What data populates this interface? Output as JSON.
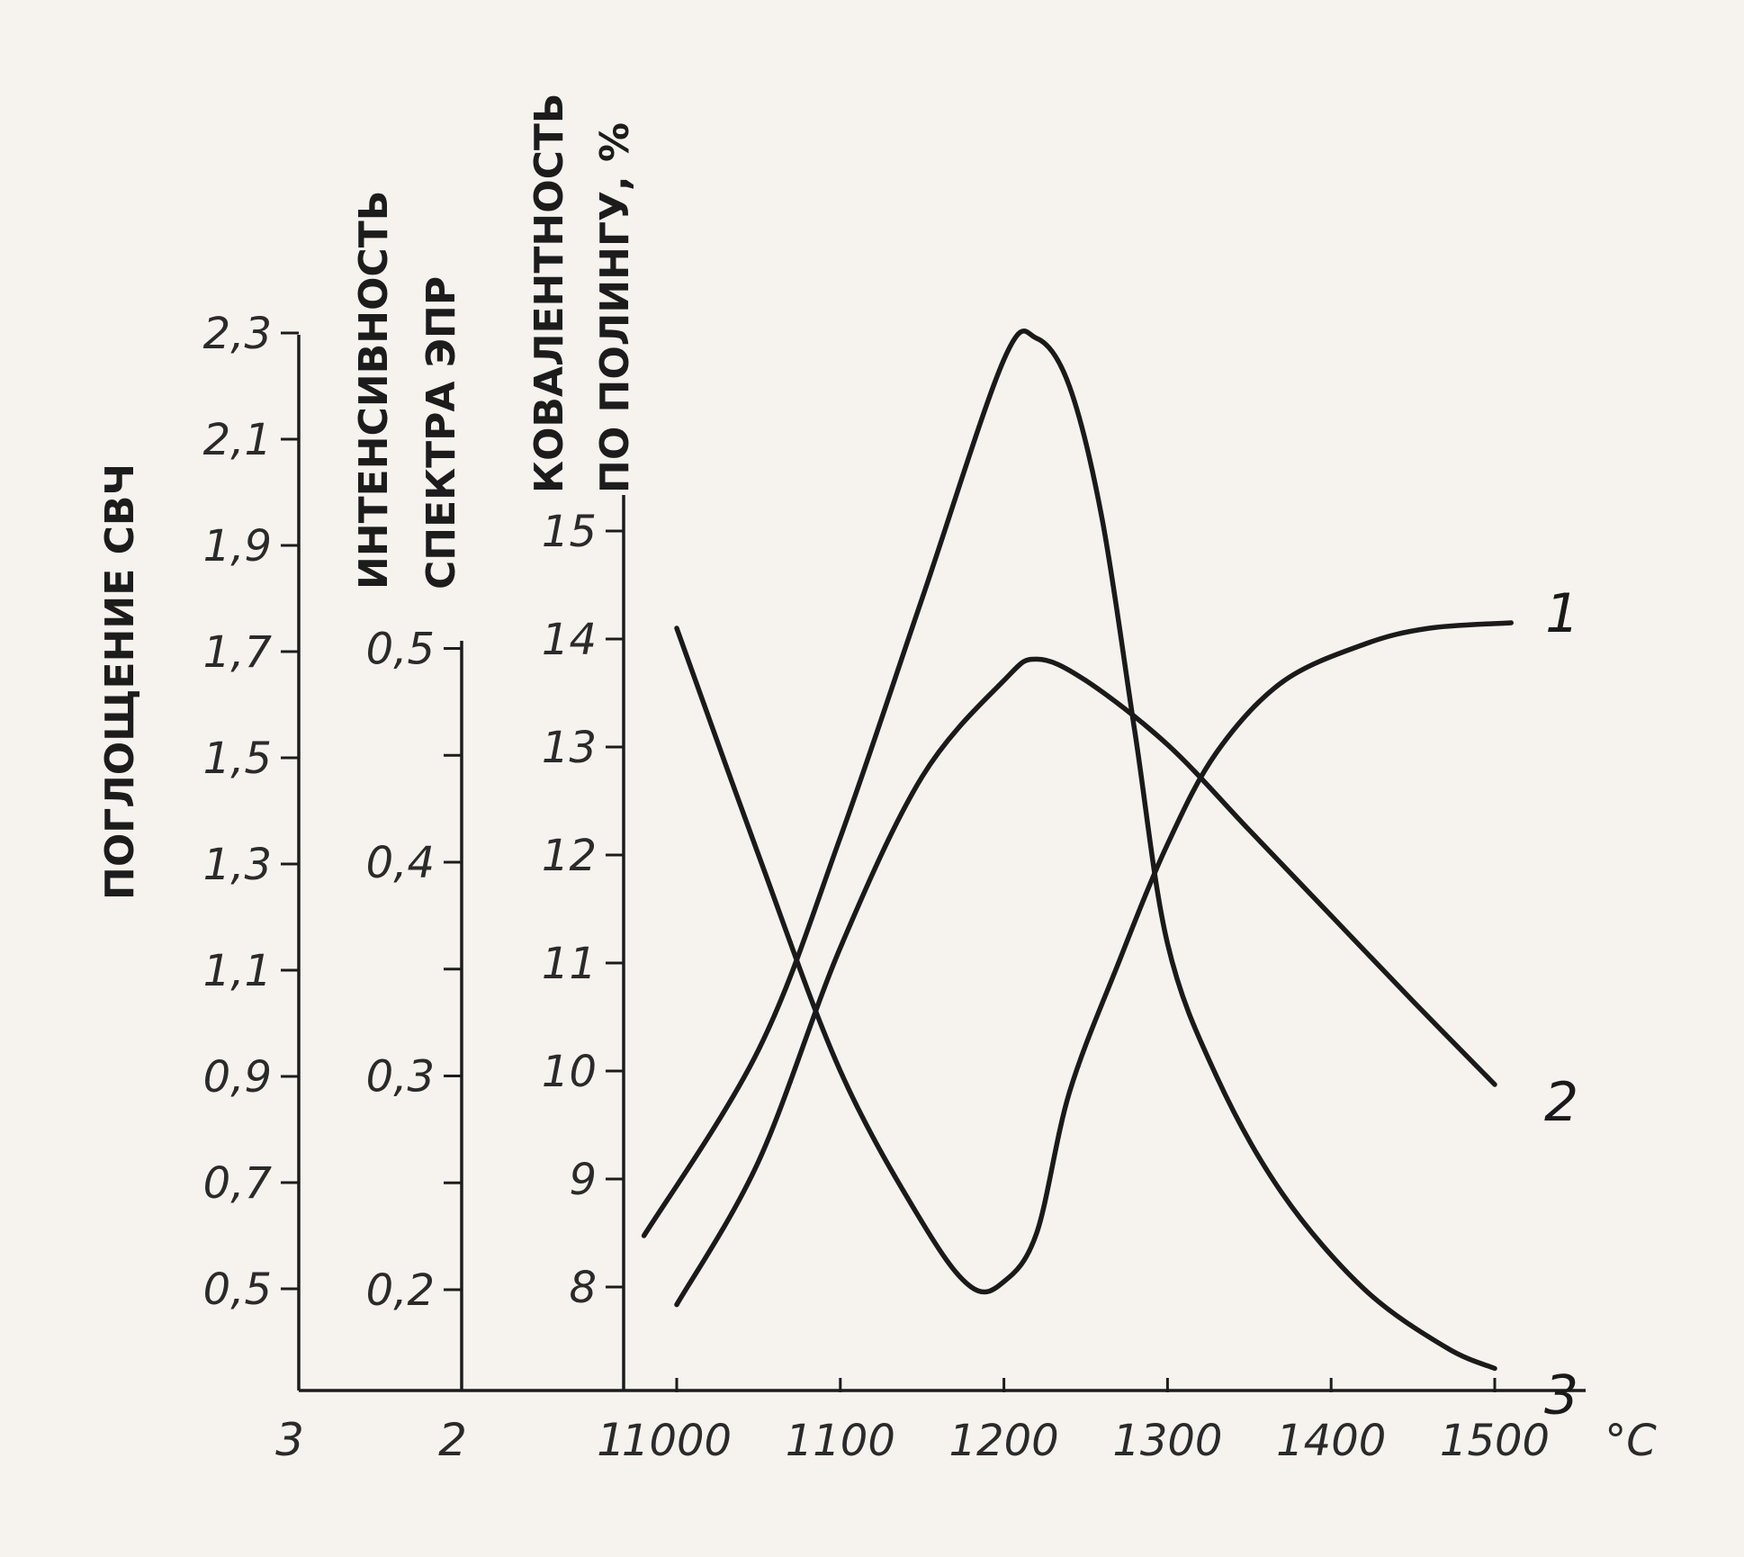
{
  "chart_data": {
    "type": "line",
    "x": {
      "label": "°C",
      "ticks": [
        1000,
        1100,
        1200,
        1300,
        1400,
        1500
      ],
      "range": [
        970,
        1550
      ]
    },
    "y_axes": [
      {
        "id": "3",
        "title": "ПОГЛОЩЕНИЕ СВЧ",
        "ticks": [
          "0,5",
          "0,7",
          "0,9",
          "1,1",
          "1,3",
          "1,5",
          "1,7",
          "1,9",
          "2,1",
          "2,3"
        ],
        "tick_values": [
          0.5,
          0.7,
          0.9,
          1.1,
          1.3,
          1.5,
          1.7,
          1.9,
          2.1,
          2.3
        ],
        "range": [
          0.3,
          2.3
        ]
      },
      {
        "id": "2",
        "title_lines": [
          "ИНТЕНСИВНОСТЬ",
          "СПЕКТРА ЭПР"
        ],
        "ticks": [
          "0,2",
          "0,3",
          "0,4",
          "0,5"
        ],
        "tick_values": [
          0.2,
          0.3,
          0.4,
          0.5
        ],
        "range": [
          0.15,
          0.5
        ]
      },
      {
        "id": "1",
        "title_lines": [
          "КОВАЛЕНТНОСТЬ",
          "ПО ПОЛИНГУ, %"
        ],
        "ticks": [
          "8",
          "9",
          "10",
          "11",
          "12",
          "13",
          "14",
          "15"
        ],
        "tick_values": [
          8,
          9,
          10,
          11,
          12,
          13,
          14,
          15
        ],
        "range": [
          7,
          15
        ]
      }
    ],
    "series": [
      {
        "name": "1",
        "axis": "1",
        "points": [
          [
            1000,
            14.1
          ],
          [
            1050,
            12.0
          ],
          [
            1100,
            10.0
          ],
          [
            1150,
            8.6
          ],
          [
            1180,
            8.0
          ],
          [
            1200,
            8.05
          ],
          [
            1220,
            8.5
          ],
          [
            1240,
            9.8
          ],
          [
            1270,
            11.0
          ],
          [
            1300,
            12.1
          ],
          [
            1330,
            12.95
          ],
          [
            1370,
            13.6
          ],
          [
            1420,
            13.95
          ],
          [
            1460,
            14.1
          ],
          [
            1510,
            14.15
          ]
        ]
      },
      {
        "name": "2",
        "axis": "2",
        "points": [
          [
            1000,
            0.193
          ],
          [
            1050,
            0.26
          ],
          [
            1100,
            0.36
          ],
          [
            1150,
            0.44
          ],
          [
            1200,
            0.485
          ],
          [
            1220,
            0.495
          ],
          [
            1250,
            0.485
          ],
          [
            1300,
            0.455
          ],
          [
            1350,
            0.415
          ],
          [
            1400,
            0.375
          ],
          [
            1450,
            0.335
          ],
          [
            1500,
            0.296
          ]
        ]
      },
      {
        "name": "3",
        "axis": "3",
        "points": [
          [
            980,
            0.6
          ],
          [
            1050,
            0.95
          ],
          [
            1100,
            1.35
          ],
          [
            1150,
            1.8
          ],
          [
            1200,
            2.25
          ],
          [
            1220,
            2.29
          ],
          [
            1240,
            2.2
          ],
          [
            1260,
            1.95
          ],
          [
            1280,
            1.55
          ],
          [
            1300,
            1.15
          ],
          [
            1330,
            0.9
          ],
          [
            1370,
            0.68
          ],
          [
            1420,
            0.5
          ],
          [
            1470,
            0.39
          ],
          [
            1500,
            0.35
          ]
        ]
      }
    ],
    "grid": false,
    "legend": "none"
  }
}
